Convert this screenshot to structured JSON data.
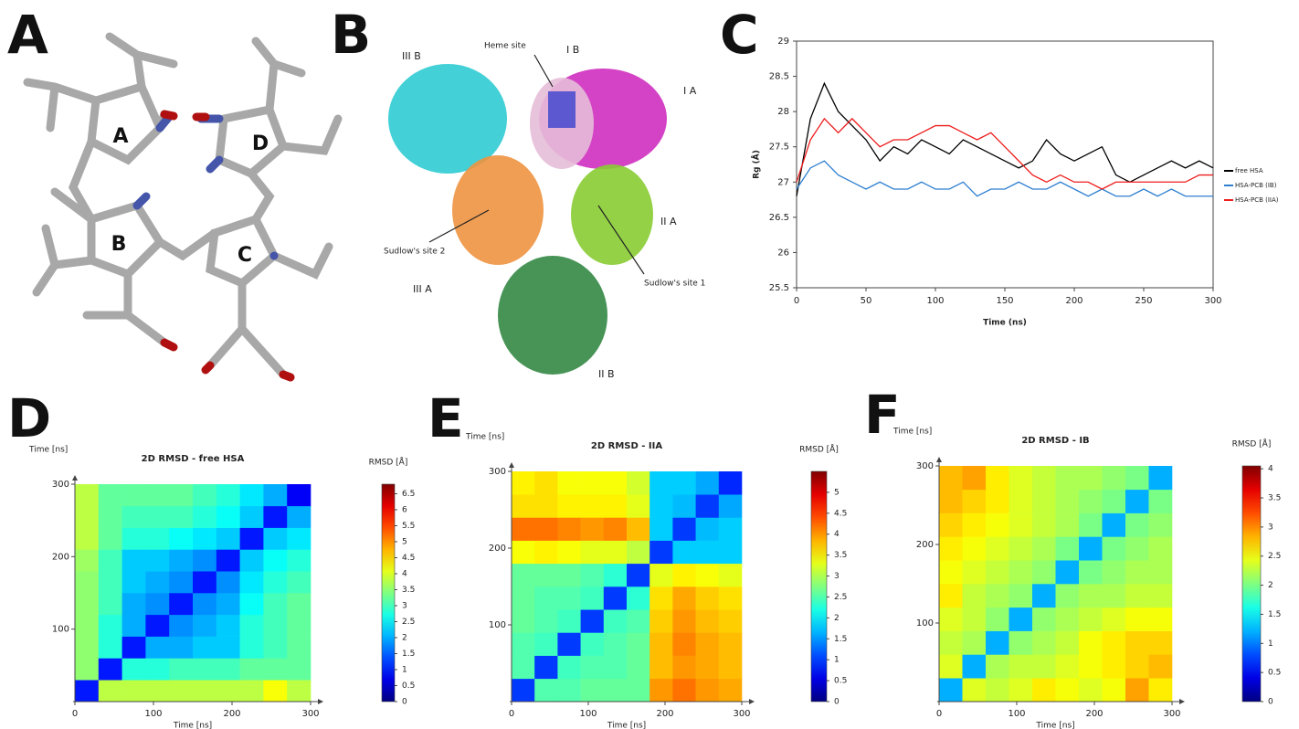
{
  "panel_a": {
    "label": "A",
    "rings": [
      "A",
      "B",
      "C",
      "D"
    ]
  },
  "panel_b": {
    "label": "B",
    "annotations": [
      "III B",
      "Heme site",
      "I B",
      "I A",
      "Sudlow's site 2",
      "II A",
      "Sudlow's site 1",
      "III A",
      "II B"
    ]
  },
  "chart_data": [
    {
      "type": "line",
      "panel_label": "C",
      "xlabel": "Time (ns)",
      "ylabel": "Rg (Å)",
      "x": [
        0,
        10,
        20,
        30,
        40,
        50,
        60,
        70,
        80,
        90,
        100,
        110,
        120,
        130,
        140,
        150,
        160,
        170,
        180,
        190,
        200,
        210,
        220,
        230,
        240,
        250,
        260,
        270,
        280,
        290,
        300
      ],
      "xlim": [
        0,
        300
      ],
      "xticks": [
        0,
        50,
        100,
        150,
        200,
        250,
        300
      ],
      "ylim": [
        25.5,
        29
      ],
      "yticks": [
        25.5,
        26,
        26.5,
        27,
        27.5,
        28,
        28.5,
        29
      ],
      "series": [
        {
          "name": "free HSA",
          "color": "#000000",
          "values": [
            26.8,
            27.9,
            28.4,
            28.0,
            27.8,
            27.6,
            27.3,
            27.5,
            27.4,
            27.6,
            27.5,
            27.4,
            27.6,
            27.5,
            27.4,
            27.3,
            27.2,
            27.3,
            27.6,
            27.4,
            27.3,
            27.4,
            27.5,
            27.1,
            27.0,
            27.1,
            27.2,
            27.3,
            27.2,
            27.3,
            27.2
          ]
        },
        {
          "name": "HSA-PCB (IB)",
          "color": "#2e7fd0",
          "values": [
            26.9,
            27.2,
            27.3,
            27.1,
            27.0,
            26.9,
            27.0,
            26.9,
            26.9,
            27.0,
            26.9,
            26.9,
            27.0,
            26.8,
            26.9,
            26.9,
            27.0,
            26.9,
            26.9,
            27.0,
            26.9,
            26.8,
            26.9,
            26.8,
            26.8,
            26.9,
            26.8,
            26.9,
            26.8,
            26.8,
            26.8
          ]
        },
        {
          "name": "HSA-PCB (IIA)",
          "color": "#ee1c1c",
          "values": [
            27.0,
            27.6,
            27.9,
            27.7,
            27.9,
            27.7,
            27.5,
            27.6,
            27.6,
            27.7,
            27.8,
            27.8,
            27.7,
            27.6,
            27.7,
            27.5,
            27.3,
            27.1,
            27.0,
            27.1,
            27.0,
            27.0,
            26.9,
            27.0,
            27.0,
            27.0,
            27.0,
            27.0,
            27.0,
            27.1,
            27.1
          ]
        }
      ]
    },
    {
      "type": "heatmap",
      "panel_label": "D",
      "title": "2D RMSD - free HSA",
      "xlabel": "Time [ns]",
      "ylabel": "Time [ns]",
      "colorbar_label": "RMSD [Å]",
      "xlim": [
        0,
        300
      ],
      "ylim": [
        0,
        300
      ],
      "xticks": [
        0,
        100,
        200,
        300
      ],
      "yticks": [
        100,
        200,
        300
      ],
      "clim": [
        0,
        6.8
      ],
      "cticks": [
        0,
        0.5,
        1,
        1.5,
        2,
        2.5,
        3,
        3.5,
        4,
        4.5,
        5,
        5.5,
        6,
        6.5
      ],
      "values": [
        [
          1.0,
          3.8,
          3.8,
          3.8,
          3.8,
          3.8,
          3.8,
          3.8,
          4.2,
          3.8
        ],
        [
          3.5,
          1.0,
          2.8,
          2.8,
          3.0,
          3.0,
          3.0,
          3.2,
          3.2,
          3.2
        ],
        [
          3.5,
          2.8,
          1.0,
          2.0,
          2.0,
          2.2,
          2.2,
          2.8,
          3.0,
          3.2
        ],
        [
          3.5,
          2.8,
          2.0,
          1.0,
          1.8,
          2.0,
          2.2,
          2.8,
          3.0,
          3.2
        ],
        [
          3.5,
          3.0,
          2.0,
          1.8,
          1.0,
          1.8,
          2.0,
          2.6,
          3.0,
          3.2
        ],
        [
          3.5,
          3.0,
          2.2,
          2.0,
          1.8,
          1.0,
          1.8,
          2.4,
          2.8,
          3.0
        ],
        [
          3.6,
          3.0,
          2.2,
          2.2,
          2.0,
          1.8,
          1.0,
          2.2,
          2.6,
          2.8
        ],
        [
          3.8,
          3.2,
          2.8,
          2.8,
          2.6,
          2.4,
          2.2,
          1.0,
          2.2,
          2.4
        ],
        [
          3.8,
          3.2,
          3.0,
          3.0,
          3.0,
          2.8,
          2.6,
          2.2,
          1.0,
          2.0
        ],
        [
          3.8,
          3.2,
          3.2,
          3.2,
          3.2,
          3.0,
          2.8,
          2.4,
          2.0,
          0.8
        ]
      ]
    },
    {
      "type": "heatmap",
      "panel_label": "E",
      "title": "2D RMSD - IIA",
      "xlabel": "Time [ns]",
      "ylabel": "Time [ns]",
      "colorbar_label": "RMSD [Å]",
      "xlim": [
        0,
        300
      ],
      "ylim": [
        0,
        300
      ],
      "xticks": [
        0,
        100,
        200,
        300
      ],
      "yticks": [
        100,
        200,
        300
      ],
      "clim": [
        0,
        5.5
      ],
      "cticks": [
        0,
        0.5,
        1,
        1.5,
        2,
        2.5,
        3,
        3.5,
        4,
        4.5,
        5
      ],
      "values": [
        [
          1.0,
          2.5,
          2.5,
          2.6,
          2.6,
          2.6,
          4.0,
          4.2,
          4.0,
          3.9
        ],
        [
          2.5,
          1.0,
          2.4,
          2.5,
          2.5,
          2.6,
          3.8,
          4.0,
          3.9,
          3.8
        ],
        [
          2.5,
          2.4,
          1.0,
          2.4,
          2.5,
          2.6,
          3.8,
          4.1,
          3.9,
          3.8
        ],
        [
          2.6,
          2.5,
          2.4,
          1.0,
          2.4,
          2.5,
          3.7,
          4.0,
          3.8,
          3.7
        ],
        [
          2.6,
          2.5,
          2.5,
          2.4,
          1.0,
          2.3,
          3.6,
          3.9,
          3.7,
          3.6
        ],
        [
          2.6,
          2.6,
          2.6,
          2.5,
          2.3,
          1.0,
          3.3,
          3.5,
          3.4,
          3.3
        ],
        [
          3.4,
          3.5,
          3.4,
          3.3,
          3.3,
          3.1,
          1.0,
          1.8,
          1.8,
          1.8
        ],
        [
          4.2,
          4.2,
          4.1,
          4.0,
          4.1,
          3.8,
          1.8,
          1.0,
          1.7,
          1.8
        ],
        [
          3.6,
          3.6,
          3.5,
          3.5,
          3.5,
          3.3,
          1.8,
          1.7,
          1.0,
          1.6
        ],
        [
          3.5,
          3.6,
          3.4,
          3.4,
          3.4,
          3.2,
          1.8,
          1.8,
          1.6,
          0.9
        ]
      ]
    },
    {
      "type": "heatmap",
      "panel_label": "F",
      "title": "2D RMSD - IB",
      "xlabel": "Time [ns]",
      "ylabel": "Time [ns]",
      "colorbar_label": "RMSD [Å]",
      "xlim": [
        0,
        300
      ],
      "ylim": [
        0,
        300
      ],
      "xticks": [
        0,
        100,
        200,
        300
      ],
      "yticks": [
        100,
        200,
        300
      ],
      "clim": [
        0,
        4.05
      ],
      "cticks": [
        0,
        0.5,
        1,
        1.5,
        2,
        2.5,
        3,
        3.5,
        4
      ],
      "values": [
        [
          1.2,
          2.4,
          2.3,
          2.4,
          2.6,
          2.5,
          2.4,
          2.5,
          2.9,
          2.6
        ],
        [
          2.4,
          1.2,
          2.2,
          2.3,
          2.3,
          2.4,
          2.5,
          2.6,
          2.7,
          2.8
        ],
        [
          2.3,
          2.2,
          1.2,
          2.1,
          2.2,
          2.3,
          2.5,
          2.6,
          2.7,
          2.7
        ],
        [
          2.4,
          2.3,
          2.1,
          1.2,
          2.1,
          2.2,
          2.3,
          2.4,
          2.5,
          2.5
        ],
        [
          2.6,
          2.3,
          2.2,
          2.1,
          1.2,
          2.1,
          2.2,
          2.2,
          2.3,
          2.3
        ],
        [
          2.5,
          2.4,
          2.3,
          2.2,
          2.1,
          1.2,
          2.0,
          2.1,
          2.2,
          2.2
        ],
        [
          2.6,
          2.5,
          2.4,
          2.3,
          2.2,
          2.0,
          1.2,
          2.0,
          2.1,
          2.2
        ],
        [
          2.7,
          2.6,
          2.5,
          2.4,
          2.3,
          2.2,
          2.0,
          1.2,
          2.0,
          2.1
        ],
        [
          2.8,
          2.7,
          2.6,
          2.4,
          2.3,
          2.2,
          2.1,
          2.0,
          1.2,
          2.0
        ],
        [
          2.8,
          2.9,
          2.6,
          2.4,
          2.3,
          2.2,
          2.2,
          2.1,
          2.0,
          1.2
        ]
      ]
    }
  ]
}
